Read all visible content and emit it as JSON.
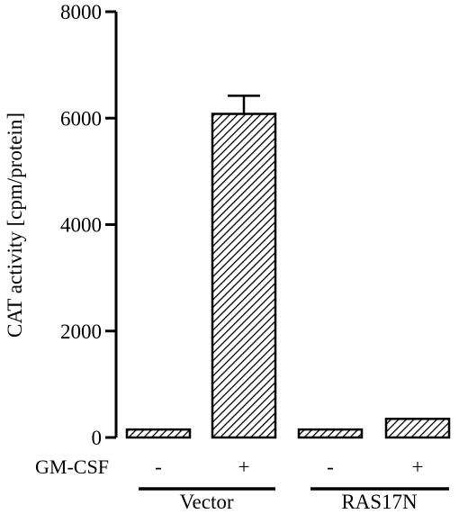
{
  "chart_data": {
    "type": "bar",
    "ylabel": "CAT activity [cpm/protein]",
    "ylim": [
      0,
      8000
    ],
    "yticks": [
      0,
      2000,
      4000,
      6000,
      8000
    ],
    "categories": [
      "-",
      "+",
      "-",
      "+"
    ],
    "values": [
      150,
      6080,
      150,
      350
    ],
    "error_upper": [
      null,
      340,
      null,
      null
    ],
    "row_label": "GM-CSF",
    "groups": [
      {
        "label": "Vector",
        "members": [
          0,
          1
        ]
      },
      {
        "label": "RAS17N",
        "members": [
          2,
          3
        ]
      }
    ],
    "bar_fill": "diagonal hatch",
    "colors": {
      "ink": "#000000",
      "background": "#ffffff"
    }
  }
}
